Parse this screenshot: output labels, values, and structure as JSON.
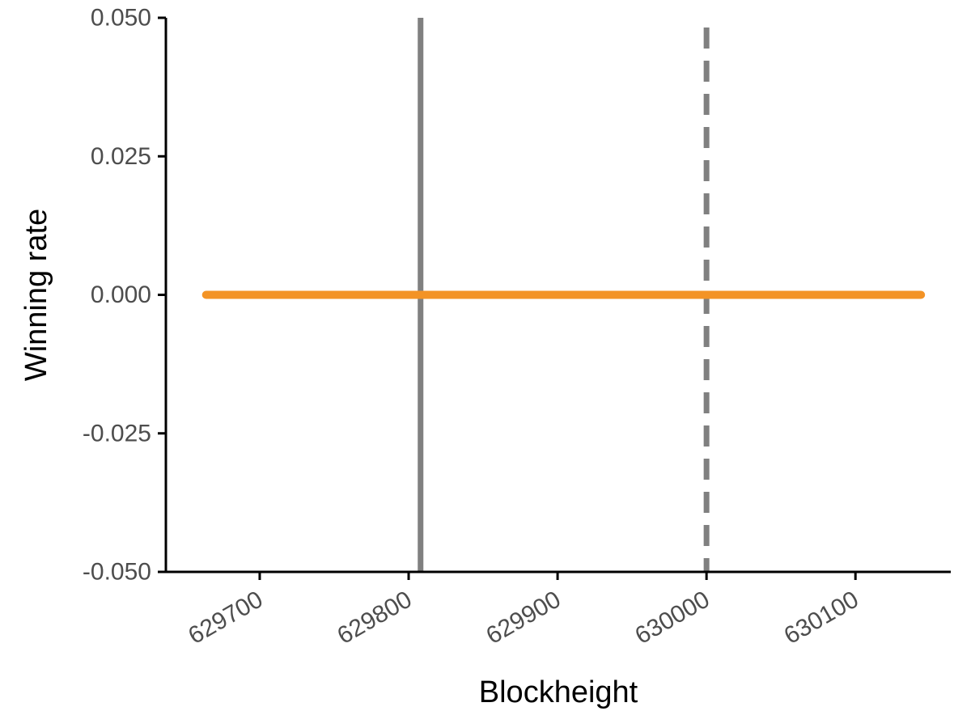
{
  "chart_data": {
    "type": "line",
    "title": "",
    "xlabel": "Blockheight",
    "ylabel": "Winning rate",
    "xlim": [
      629637,
      630164
    ],
    "ylim": [
      -0.05,
      0.05
    ],
    "x_ticks": [
      629700,
      629800,
      629900,
      630000,
      630100
    ],
    "x_tick_labels": [
      "629700",
      "629800",
      "629900",
      "630000",
      "630100"
    ],
    "y_ticks": [
      -0.05,
      -0.025,
      0,
      0.025,
      0.05
    ],
    "y_tick_labels": [
      "-0.050",
      "-0.025",
      "0.000",
      "0.025",
      "0.050"
    ],
    "grid": false,
    "legend": "none",
    "series": [
      {
        "x": [
          629664,
          630144
        ],
        "values": [
          0,
          0
        ],
        "color": "#f39325"
      }
    ],
    "reference_lines": [
      {
        "x": 629808,
        "style": "solid",
        "color": "#808080"
      },
      {
        "x": 630000,
        "style": "dashed",
        "color": "#808080"
      }
    ]
  }
}
